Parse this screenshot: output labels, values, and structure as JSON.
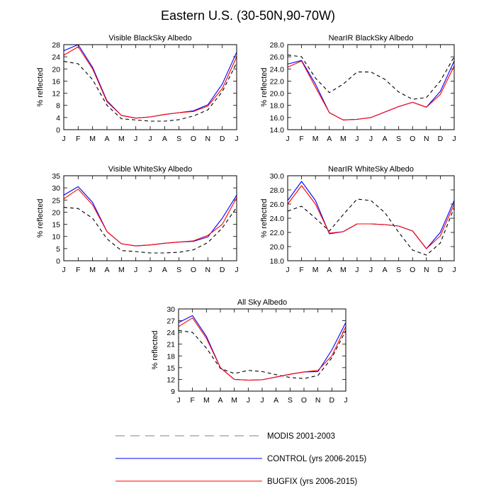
{
  "figure": {
    "title": "Eastern U.S. (30-50N,90-70W)"
  },
  "colors": {
    "modis": "#000000",
    "control": "#0000ff",
    "bugfix": "#ff0000",
    "axis": "#000000"
  },
  "chart_data": [
    {
      "type": "line",
      "title": "Visible BlackSky Albedo",
      "ylabel": "% reflected",
      "categories": [
        "J",
        "F",
        "M",
        "A",
        "M",
        "J",
        "J",
        "A",
        "S",
        "O",
        "N",
        "D",
        "J"
      ],
      "ylim": [
        0,
        28
      ],
      "yticks": [
        "0",
        "4",
        "8",
        "12",
        "16",
        "20",
        "24",
        "28"
      ],
      "series": [
        {
          "name": "MODIS 2001-2003",
          "values": [
            22.5,
            21.7,
            16.5,
            8.0,
            3.6,
            3.2,
            2.8,
            2.8,
            3.3,
            4.5,
            6.5,
            12.5,
            22.0
          ]
        },
        {
          "name": "CONTROL (yrs 2006-2015)",
          "values": [
            26.0,
            28.0,
            20.5,
            9.5,
            4.7,
            3.8,
            4.2,
            5.0,
            5.6,
            6.2,
            8.2,
            15.0,
            25.5
          ]
        },
        {
          "name": "BUGFIX (yrs 2006-2015)",
          "values": [
            24.5,
            27.3,
            20.0,
            9.2,
            4.7,
            3.8,
            4.2,
            5.0,
            5.6,
            6.0,
            7.8,
            13.5,
            24.0
          ]
        }
      ]
    },
    {
      "type": "line",
      "title": "NearIR BlackSky Albedo",
      "ylabel": "% reflected",
      "categories": [
        "J",
        "F",
        "M",
        "A",
        "M",
        "J",
        "J",
        "A",
        "S",
        "O",
        "N",
        "D",
        "J"
      ],
      "ylim": [
        14,
        28
      ],
      "yticks": [
        "14.0",
        "16.0",
        "18.0",
        "20.0",
        "22.0",
        "24.0",
        "26.0",
        "28.0"
      ],
      "series": [
        {
          "name": "MODIS 2001-2003",
          "values": [
            26.3,
            26.0,
            22.5,
            20.1,
            21.5,
            23.5,
            23.5,
            22.3,
            20.2,
            19.0,
            19.3,
            22.0,
            26.0
          ]
        },
        {
          "name": "CONTROL (yrs 2006-2015)",
          "values": [
            24.8,
            25.4,
            21.5,
            16.8,
            15.6,
            15.7,
            16.0,
            16.9,
            17.8,
            18.5,
            17.7,
            20.3,
            25.3
          ]
        },
        {
          "name": "BUGFIX (yrs 2006-2015)",
          "values": [
            24.3,
            25.3,
            21.0,
            16.8,
            15.6,
            15.7,
            16.0,
            16.9,
            17.8,
            18.5,
            17.7,
            19.8,
            24.5
          ]
        }
      ]
    },
    {
      "type": "line",
      "title": "Visible WhiteSky Albedo",
      "ylabel": "% reflected",
      "categories": [
        "J",
        "F",
        "M",
        "A",
        "M",
        "J",
        "J",
        "A",
        "S",
        "O",
        "N",
        "D",
        "J"
      ],
      "ylim": [
        0,
        35
      ],
      "yticks": [
        "0",
        "5",
        "10",
        "15",
        "20",
        "25",
        "30",
        "35"
      ],
      "series": [
        {
          "name": "MODIS 2001-2003",
          "values": [
            22.0,
            21.5,
            17.5,
            9.0,
            4.2,
            3.8,
            3.2,
            3.2,
            3.5,
            4.5,
            7.5,
            13.5,
            22.0
          ]
        },
        {
          "name": "CONTROL (yrs 2006-2015)",
          "values": [
            27.0,
            30.5,
            24.0,
            12.0,
            7.0,
            6.1,
            6.5,
            7.2,
            7.7,
            8.0,
            9.8,
            17.5,
            27.0
          ]
        },
        {
          "name": "BUGFIX (yrs 2006-2015)",
          "values": [
            25.5,
            29.5,
            23.0,
            12.0,
            7.0,
            6.1,
            6.5,
            7.2,
            7.7,
            8.2,
            10.4,
            15.0,
            26.0
          ]
        }
      ]
    },
    {
      "type": "line",
      "title": "NearIR WhiteSky Albedo",
      "ylabel": "% reflected",
      "categories": [
        "J",
        "F",
        "M",
        "A",
        "M",
        "J",
        "J",
        "A",
        "S",
        "O",
        "N",
        "D",
        "J"
      ],
      "ylim": [
        18,
        30
      ],
      "yticks": [
        "18.0",
        "20.0",
        "22.0",
        "24.0",
        "26.0",
        "28.0",
        "30.0"
      ],
      "series": [
        {
          "name": "MODIS 2001-2003",
          "values": [
            25.0,
            25.7,
            24.0,
            22.2,
            24.5,
            26.7,
            26.5,
            24.8,
            22.0,
            19.5,
            18.8,
            20.5,
            25.5
          ]
        },
        {
          "name": "CONTROL (yrs 2006-2015)",
          "values": [
            26.5,
            29.2,
            26.5,
            21.8,
            22.1,
            23.2,
            23.2,
            23.1,
            22.9,
            22.2,
            19.7,
            22.0,
            26.5
          ]
        },
        {
          "name": "BUGFIX (yrs 2006-2015)",
          "values": [
            26.0,
            28.6,
            26.0,
            21.9,
            22.1,
            23.2,
            23.2,
            23.1,
            22.9,
            22.2,
            19.7,
            21.5,
            26.0
          ]
        }
      ]
    },
    {
      "type": "line",
      "title": "All Sky Albedo",
      "ylabel": "% reflected",
      "categories": [
        "J",
        "F",
        "M",
        "A",
        "M",
        "J",
        "J",
        "A",
        "S",
        "O",
        "N",
        "D",
        "J"
      ],
      "ylim": [
        9,
        30
      ],
      "yticks": [
        "9",
        "12",
        "15",
        "18",
        "21",
        "24",
        "27",
        "30"
      ],
      "series": [
        {
          "name": "MODIS 2001-2003",
          "values": [
            24.5,
            24.0,
            20.0,
            14.8,
            13.5,
            14.3,
            14.0,
            13.2,
            12.5,
            12.2,
            13.0,
            17.5,
            24.5
          ]
        },
        {
          "name": "CONTROL (yrs 2006-2015)",
          "values": [
            26.5,
            28.3,
            23.0,
            15.0,
            12.0,
            11.8,
            11.9,
            12.6,
            13.3,
            13.9,
            14.0,
            19.5,
            26.5
          ]
        },
        {
          "name": "BUGFIX (yrs 2006-2015)",
          "values": [
            25.5,
            27.7,
            22.5,
            15.0,
            12.0,
            11.8,
            11.9,
            12.6,
            13.3,
            13.9,
            14.3,
            18.0,
            25.5
          ]
        }
      ]
    }
  ],
  "legend": {
    "items": [
      {
        "label": "MODIS 2001-2003",
        "style": "dashed",
        "color_key": "modis"
      },
      {
        "label": "CONTROL (yrs 2006-2015)",
        "style": "solid",
        "color_key": "control"
      },
      {
        "label": "BUGFIX (yrs 2006-2015)",
        "style": "solid",
        "color_key": "bugfix"
      }
    ]
  }
}
